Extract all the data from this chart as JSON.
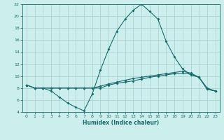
{
  "xlabel": "Humidex (Indice chaleur)",
  "bg_color": "#cceeed",
  "grid_color": "#aad4d2",
  "line_color": "#1a6b6b",
  "xlim": [
    -0.5,
    23.5
  ],
  "ylim": [
    4,
    22
  ],
  "yticks": [
    4,
    6,
    8,
    10,
    12,
    14,
    16,
    18,
    20,
    22
  ],
  "xticks": [
    0,
    1,
    2,
    3,
    4,
    5,
    6,
    7,
    8,
    9,
    10,
    11,
    12,
    13,
    14,
    15,
    16,
    17,
    18,
    19,
    20,
    21,
    22,
    23
  ],
  "line1_x": [
    0,
    1,
    2,
    3,
    4,
    5,
    6,
    7,
    8,
    9,
    10,
    11,
    12,
    13,
    14,
    15,
    16,
    17,
    18,
    19,
    20,
    21,
    22,
    23
  ],
  "line1_y": [
    8.5,
    8.0,
    8.0,
    7.5,
    6.5,
    5.5,
    4.8,
    4.2,
    7.0,
    11.0,
    14.5,
    17.5,
    19.5,
    21.0,
    22.0,
    20.8,
    19.5,
    15.8,
    13.2,
    11.2,
    10.2,
    9.8,
    8.0,
    7.5
  ],
  "line2_x": [
    0,
    1,
    2,
    3,
    4,
    5,
    6,
    7,
    8,
    9,
    10,
    11,
    12,
    13,
    14,
    15,
    16,
    17,
    18,
    19,
    20,
    21,
    22,
    23
  ],
  "line2_y": [
    8.5,
    8.0,
    8.0,
    8.0,
    8.0,
    8.0,
    8.0,
    8.0,
    8.0,
    8.3,
    8.7,
    9.0,
    9.3,
    9.6,
    9.8,
    10.0,
    10.2,
    10.4,
    10.6,
    10.8,
    10.5,
    9.8,
    7.8,
    7.5
  ],
  "line3_x": [
    0,
    1,
    2,
    3,
    4,
    5,
    6,
    7,
    8,
    9,
    10,
    11,
    12,
    13,
    14,
    15,
    16,
    17,
    18,
    19,
    20,
    21,
    22,
    23
  ],
  "line3_y": [
    8.5,
    8.0,
    8.0,
    8.0,
    8.0,
    8.0,
    8.0,
    8.0,
    8.0,
    8.0,
    8.5,
    8.8,
    9.0,
    9.2,
    9.5,
    9.8,
    10.0,
    10.2,
    10.4,
    10.5,
    10.3,
    9.8,
    7.8,
    7.5
  ]
}
